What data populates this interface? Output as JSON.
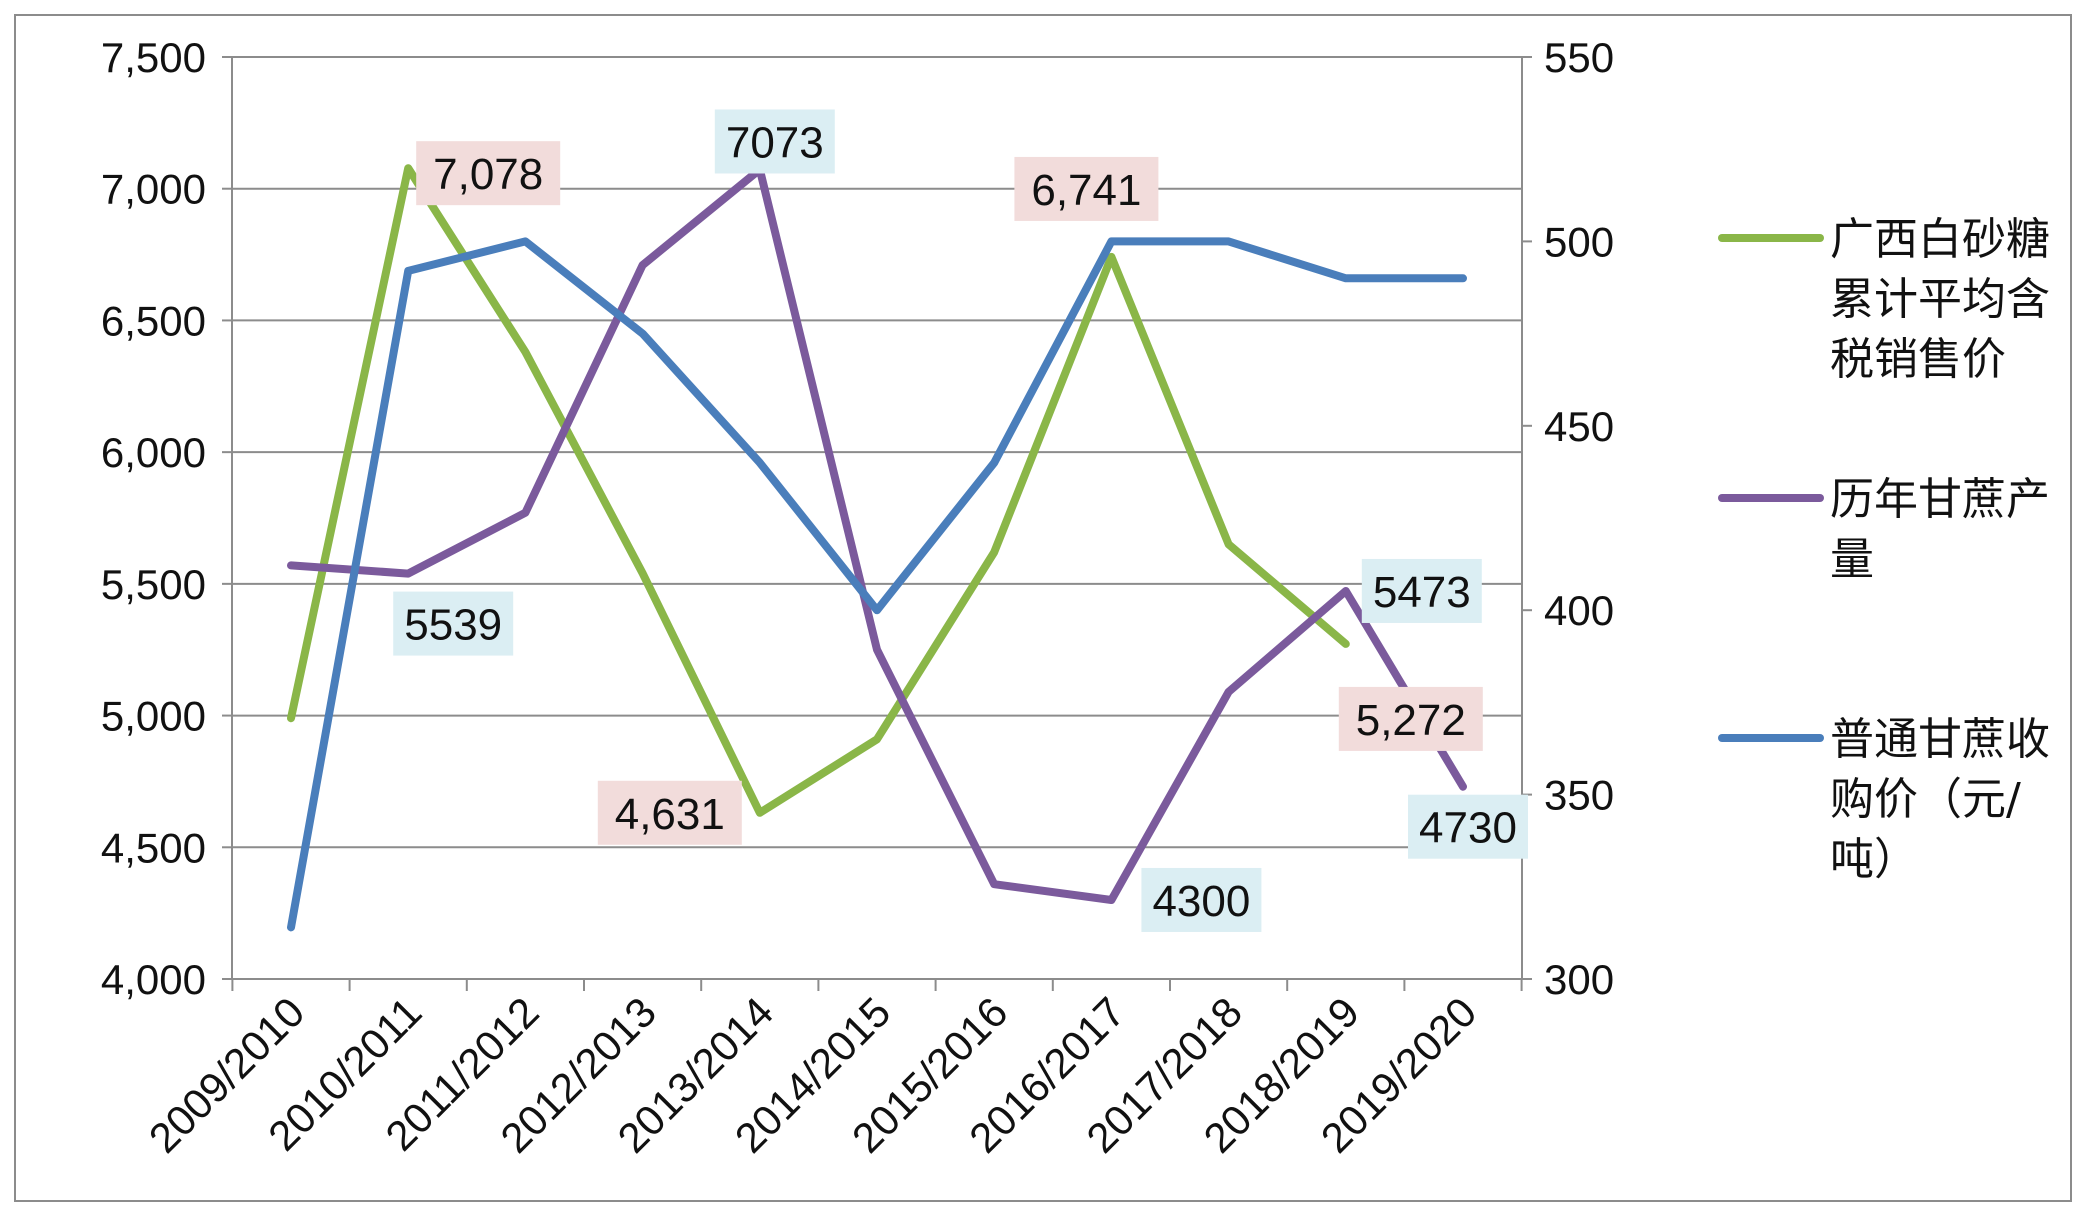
{
  "chart_data": {
    "type": "line",
    "categories": [
      "2009/2010",
      "2010/2011",
      "2011/2012",
      "2012/2013",
      "2013/2014",
      "2014/2015",
      "2015/2016",
      "2016/2017",
      "2017/2018",
      "2018/2019",
      "2019/2020"
    ],
    "y_left": {
      "ylim": [
        4000,
        7500
      ],
      "ticks": [
        "4,000",
        "4,500",
        "5,000",
        "5,500",
        "6,000",
        "6,500",
        "7,000",
        "7,500"
      ]
    },
    "y_right": {
      "ylim": [
        300,
        550
      ],
      "ticks": [
        "300",
        "350",
        "400",
        "450",
        "500",
        "550"
      ]
    },
    "grid": true,
    "legend_position": "right",
    "series": [
      {
        "name": "广西白砂糖累计平均含税销售价",
        "legend_lines": [
          "广西白砂糖",
          "累计平均含",
          "税销售价"
        ],
        "axis": "left",
        "color": "#8ab648",
        "values": [
          4990,
          7078,
          6380,
          5540,
          4631,
          4910,
          5620,
          6741,
          5650,
          5272,
          null
        ]
      },
      {
        "name": "历年甘蔗产量",
        "legend_lines": [
          "历年甘蔗产",
          "量"
        ],
        "axis": "left",
        "color": "#7b5a9c",
        "values": [
          5570,
          5539,
          5770,
          6710,
          7073,
          5250,
          4360,
          4300,
          5090,
          5473,
          4730
        ]
      },
      {
        "name": "普通甘蔗收购价（元/吨）",
        "legend_lines": [
          "普通甘蔗收",
          "购价（元/",
          "吨）"
        ],
        "axis": "right",
        "color": "#4a7ebb",
        "values": [
          314,
          492,
          500,
          475,
          440,
          400,
          440,
          500,
          500,
          490,
          490
        ]
      }
    ],
    "data_labels": [
      {
        "text": "7,078",
        "series": 0,
        "index": 1,
        "bg": "#f2dcdb"
      },
      {
        "text": "4,631",
        "series": 0,
        "index": 4,
        "bg": "#f2dcdb"
      },
      {
        "text": "6,741",
        "series": 0,
        "index": 7,
        "bg": "#f2dcdb"
      },
      {
        "text": "5,272",
        "series": 0,
        "index": 9,
        "bg": "#f2dcdb"
      },
      {
        "text": "5539",
        "series": 1,
        "index": 1,
        "bg": "#dbeef3"
      },
      {
        "text": "7073",
        "series": 1,
        "index": 4,
        "bg": "#dbeef3"
      },
      {
        "text": "4300",
        "series": 1,
        "index": 7,
        "bg": "#dbeef3"
      },
      {
        "text": "5473",
        "series": 1,
        "index": 9,
        "bg": "#dbeef3"
      },
      {
        "text": "4730",
        "series": 1,
        "index": 10,
        "bg": "#dbeef3"
      }
    ]
  }
}
